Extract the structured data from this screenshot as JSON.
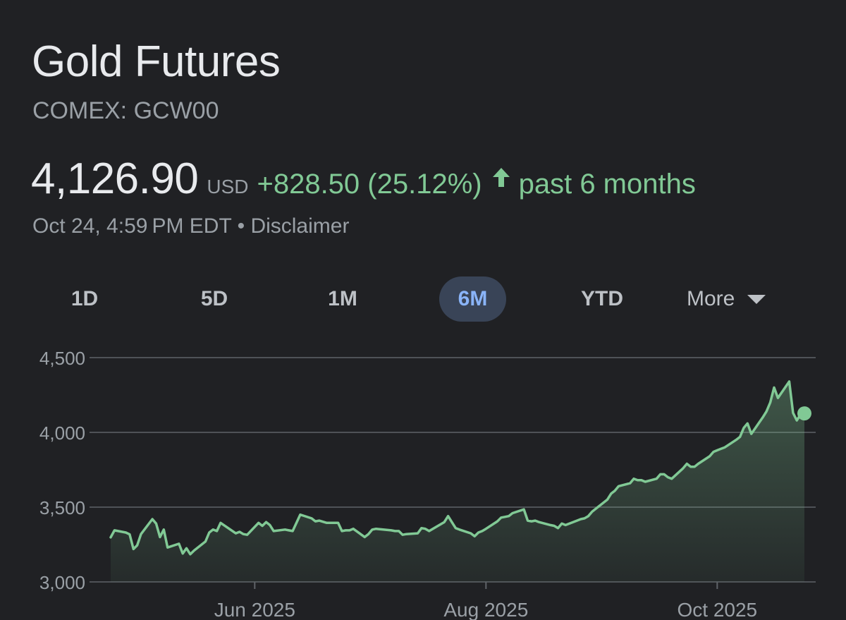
{
  "header": {
    "title": "Gold Futures",
    "ticker": "COMEX: GCW00"
  },
  "quote": {
    "price": "4,126.90",
    "currency": "USD",
    "change": "+828.50 (25.12%)",
    "direction": "up",
    "period": "past 6 months",
    "timestamp": "Oct 24, 4:59 PM EDT",
    "separator": "•",
    "disclaimer": "Disclaimer"
  },
  "range_tabs": {
    "items": [
      {
        "label": "1D"
      },
      {
        "label": "5D"
      },
      {
        "label": "1M"
      },
      {
        "label": "6M",
        "active": true
      },
      {
        "label": "YTD"
      },
      {
        "label": "More"
      }
    ]
  },
  "colors": {
    "background": "#202124",
    "up": "#81c995",
    "active_tab_bg": "#394457",
    "active_tab_text": "#8ab4f8",
    "grid": "#5f6368",
    "muted_text": "#9aa0a6"
  },
  "chart_data": {
    "type": "area",
    "x_type": "date",
    "ylim": [
      3000,
      4500
    ],
    "yticks": [
      3000,
      3500,
      4000,
      4500
    ],
    "ytick_labels": [
      "3,000",
      "3,500",
      "4,000",
      "4,500"
    ],
    "xticks": [
      "2025-06-01",
      "2025-08-01",
      "2025-10-01"
    ],
    "xtick_labels": [
      "Jun 2025",
      "Aug 2025",
      "Oct 2025"
    ],
    "x_range": [
      "2025-04-24",
      "2025-10-24"
    ],
    "grid": true,
    "series": [
      {
        "x": [
          "2025-04-24",
          "2025-04-25",
          "2025-04-28",
          "2025-04-29",
          "2025-04-30",
          "2025-05-01",
          "2025-05-02",
          "2025-05-05",
          "2025-05-06",
          "2025-05-07",
          "2025-05-08",
          "2025-05-09",
          "2025-05-12",
          "2025-05-13",
          "2025-05-14",
          "2025-05-15",
          "2025-05-16",
          "2025-05-19",
          "2025-05-20",
          "2025-05-21",
          "2025-05-22",
          "2025-05-23",
          "2025-05-27",
          "2025-05-28",
          "2025-05-29",
          "2025-05-30",
          "2025-06-02",
          "2025-06-03",
          "2025-06-04",
          "2025-06-05",
          "2025-06-06",
          "2025-06-09",
          "2025-06-10",
          "2025-06-11",
          "2025-06-12",
          "2025-06-13",
          "2025-06-16",
          "2025-06-17",
          "2025-06-18",
          "2025-06-20",
          "2025-06-23",
          "2025-06-24",
          "2025-06-25",
          "2025-06-26",
          "2025-06-27",
          "2025-06-30",
          "2025-07-01",
          "2025-07-02",
          "2025-07-03",
          "2025-07-07",
          "2025-07-08",
          "2025-07-09",
          "2025-07-10",
          "2025-07-11",
          "2025-07-14",
          "2025-07-15",
          "2025-07-16",
          "2025-07-17",
          "2025-07-18",
          "2025-07-21",
          "2025-07-22",
          "2025-07-23",
          "2025-07-24",
          "2025-07-25",
          "2025-07-28",
          "2025-07-29",
          "2025-07-30",
          "2025-07-31",
          "2025-08-01",
          "2025-08-04",
          "2025-08-05",
          "2025-08-06",
          "2025-08-07",
          "2025-08-08",
          "2025-08-11",
          "2025-08-12",
          "2025-08-13",
          "2025-08-14",
          "2025-08-15",
          "2025-08-18",
          "2025-08-19",
          "2025-08-20",
          "2025-08-21",
          "2025-08-22",
          "2025-08-25",
          "2025-08-26",
          "2025-08-27",
          "2025-08-28",
          "2025-08-29",
          "2025-09-02",
          "2025-09-03",
          "2025-09-04",
          "2025-09-05",
          "2025-09-08",
          "2025-09-09",
          "2025-09-10",
          "2025-09-11",
          "2025-09-12",
          "2025-09-15",
          "2025-09-16",
          "2025-09-17",
          "2025-09-18",
          "2025-09-19",
          "2025-09-22",
          "2025-09-23",
          "2025-09-24",
          "2025-09-25",
          "2025-09-26",
          "2025-09-29",
          "2025-09-30",
          "2025-10-01",
          "2025-10-02",
          "2025-10-03",
          "2025-10-06",
          "2025-10-07",
          "2025-10-08",
          "2025-10-09",
          "2025-10-10",
          "2025-10-13",
          "2025-10-14",
          "2025-10-15",
          "2025-10-16",
          "2025-10-17",
          "2025-10-20",
          "2025-10-21",
          "2025-10-22",
          "2025-10-23",
          "2025-10-24"
        ],
        "values": [
          3298,
          3345,
          3330,
          3318,
          3220,
          3245,
          3320,
          3420,
          3390,
          3300,
          3350,
          3230,
          3255,
          3190,
          3225,
          3185,
          3210,
          3270,
          3330,
          3350,
          3340,
          3395,
          3325,
          3335,
          3320,
          3315,
          3395,
          3375,
          3400,
          3380,
          3340,
          3350,
          3345,
          3340,
          3395,
          3450,
          3425,
          3405,
          3410,
          3395,
          3395,
          3340,
          3345,
          3345,
          3355,
          3300,
          3320,
          3350,
          3355,
          3345,
          3340,
          3340,
          3315,
          3320,
          3325,
          3360,
          3355,
          3340,
          3355,
          3400,
          3440,
          3400,
          3360,
          3350,
          3325,
          3305,
          3330,
          3340,
          3355,
          3405,
          3430,
          3435,
          3440,
          3460,
          3485,
          3410,
          3405,
          3410,
          3400,
          3380,
          3375,
          3360,
          3390,
          3380,
          3410,
          3420,
          3425,
          3440,
          3470,
          3550,
          3590,
          3610,
          3640,
          3660,
          3690,
          3680,
          3680,
          3670,
          3690,
          3720,
          3720,
          3700,
          3690,
          3760,
          3790,
          3770,
          3770,
          3790,
          3840,
          3870,
          3880,
          3890,
          3900,
          3950,
          3970,
          4030,
          4060,
          3990,
          4100,
          4140,
          4200,
          4300,
          4230,
          4340,
          4130,
          4080,
          4120,
          4126.9
        ]
      }
    ]
  }
}
